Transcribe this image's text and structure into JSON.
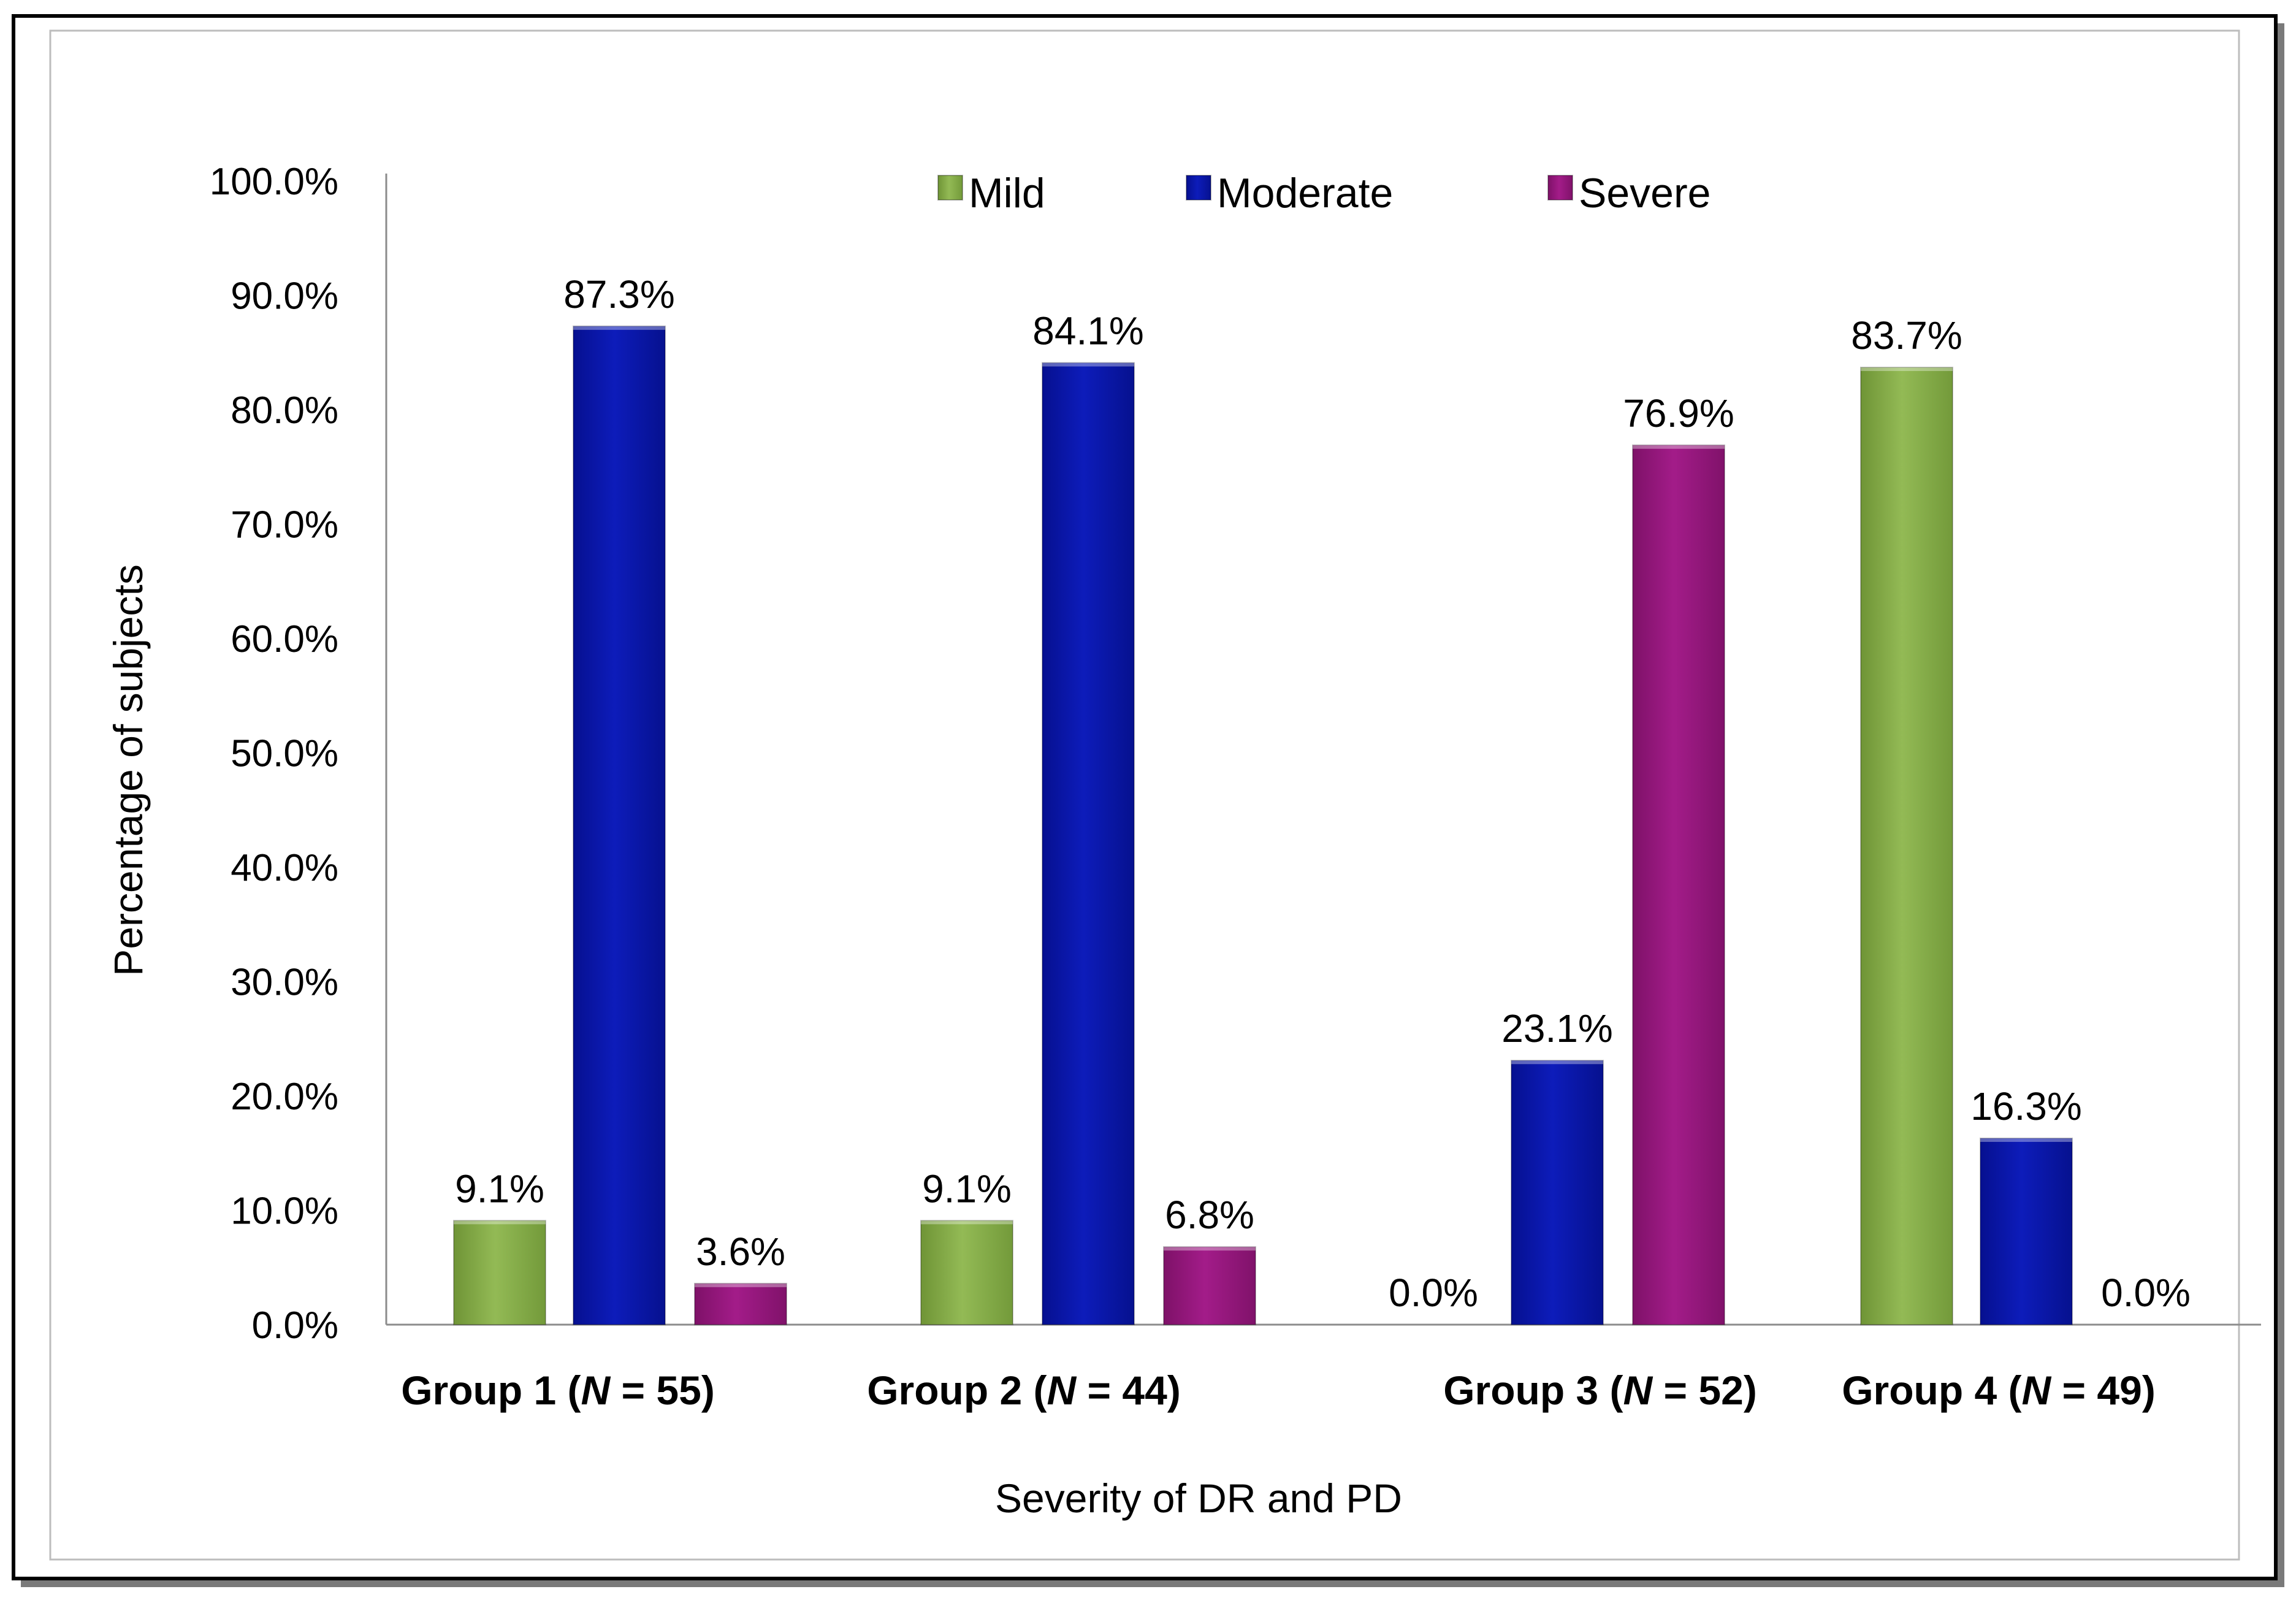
{
  "chart_data": {
    "type": "bar",
    "title": "",
    "xlabel": "Severity of DR and PD",
    "ylabel": "Percentage of subjects",
    "ylim": [
      0,
      100
    ],
    "yticks": [
      "0.0%",
      "10.0%",
      "20.0%",
      "30.0%",
      "40.0%",
      "50.0%",
      "60.0%",
      "70.0%",
      "80.0%",
      "90.0%",
      "100.0%"
    ],
    "legend_position": "top-center",
    "categories": [
      {
        "prefix": "Group 1 (",
        "italic": "N",
        "suffix": " = 55)"
      },
      {
        "prefix": "Group 2 (",
        "italic": "N",
        "suffix": " = 44)"
      },
      {
        "prefix": "Group 3 (",
        "italic": "N",
        "suffix": " = 52)"
      },
      {
        "prefix": "Group 4 (",
        "italic": "N",
        "suffix": " = 49)"
      }
    ],
    "series": [
      {
        "name": "Mild",
        "color": "#86AC48",
        "values": [
          9.1,
          9.1,
          0.0,
          83.7
        ],
        "labels": [
          "9.1%",
          "9.1%",
          "0.0%",
          "83.7%"
        ]
      },
      {
        "name": "Moderate",
        "color": "#0A17AA",
        "values": [
          87.3,
          84.1,
          23.1,
          16.3
        ],
        "labels": [
          "87.3%",
          "84.1%",
          "23.1%",
          "16.3%"
        ]
      },
      {
        "name": "Severe",
        "color": "#96187E",
        "values": [
          3.6,
          6.8,
          76.9,
          0.0
        ],
        "labels": [
          "3.6%",
          "6.8%",
          "76.9%",
          "0.0%"
        ]
      }
    ]
  }
}
